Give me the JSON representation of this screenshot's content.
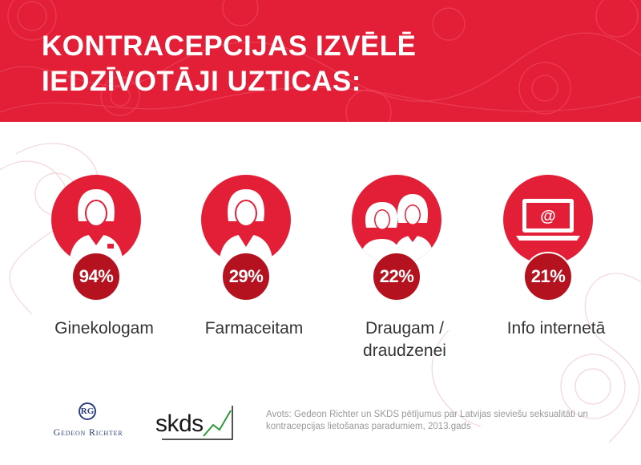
{
  "header": {
    "title_line1": "KONTRACEPCIJAS IZVĒLĒ",
    "title_line2": "IEDZĪVOTĀJI UZTICAS:"
  },
  "chart_data": {
    "type": "bar",
    "unit": "%",
    "categories": [
      "Ginekologam",
      "Farmaceitam",
      "Draugam / draudzenei",
      "Info internetā"
    ],
    "values": [
      94,
      29,
      22,
      21
    ],
    "value_labels": [
      "94%",
      "29%",
      "22%",
      "21%"
    ],
    "label_lines": [
      [
        "Ginekologam"
      ],
      [
        "Farmaceitam"
      ],
      [
        "Draugam /",
        "draudzenei"
      ],
      [
        "Info internetā"
      ]
    ],
    "icons": [
      "doctor-icon",
      "pharmacist-icon",
      "friends-icon",
      "laptop-icon"
    ],
    "title": "KONTRACEPCIJAS IZVĒLĒ IEDZĪVOTĀJI UZTICAS:"
  },
  "colors": {
    "banner": "#e31f38",
    "circle": "#e31f38",
    "badge": "#b4121f",
    "text": "#333333",
    "source": "#9a9a9a"
  },
  "footer": {
    "logo1_emblem": "RG",
    "logo1_name": "Gedeon Richter",
    "logo2_name": "skds",
    "source_line1": "Avots: Gedeon Richter un SKDS pētījumus par Latvijas sieviešu seksualitāti un",
    "source_line2": "kontracepcijas lietošanas paradumiem, 2013.gads"
  }
}
